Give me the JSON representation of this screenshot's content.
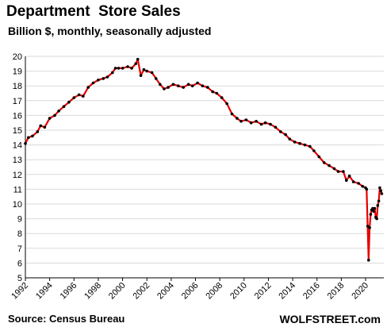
{
  "header": {
    "title": "Department  Store Sales",
    "subtitle": "Billion $, monthly, seasonally adjusted"
  },
  "footer": {
    "source": "Source: Census Bureau",
    "brand": "WOLFSTREET.com"
  },
  "colors": {
    "line": "#e60000",
    "marker": "#000000",
    "grid": "#d9d9d9"
  },
  "chart_data": {
    "type": "line",
    "title": "Department  Store Sales",
    "subtitle": "Billion $, monthly, seasonally adjusted",
    "xlabel": "",
    "ylabel": "",
    "ylim": [
      5,
      20
    ],
    "xlim": [
      1992,
      2021.5
    ],
    "grid": "horizontal",
    "legend": "none",
    "y_ticks": [
      "5",
      "6",
      "7",
      "8",
      "9",
      "10",
      "11",
      "12",
      "13",
      "14",
      "15",
      "16",
      "17",
      "18",
      "19",
      "20"
    ],
    "x_ticks": [
      "1992",
      "1994",
      "1996",
      "1998",
      "2000",
      "2002",
      "2004",
      "2006",
      "2008",
      "2010",
      "2012",
      "2014",
      "2016",
      "2018",
      "2020"
    ],
    "series": [
      {
        "name": "",
        "points": [
          [
            "1992-01",
            14.1
          ],
          [
            "1992-04",
            14.5
          ],
          [
            "1992-08",
            14.6
          ],
          [
            "1993-01",
            14.9
          ],
          [
            "1993-04",
            15.3
          ],
          [
            "1993-08",
            15.2
          ],
          [
            "1994-01",
            15.8
          ],
          [
            "1994-06",
            16.0
          ],
          [
            "1994-10",
            16.3
          ],
          [
            "1995-03",
            16.6
          ],
          [
            "1995-08",
            16.9
          ],
          [
            "1996-01",
            17.2
          ],
          [
            "1996-06",
            17.4
          ],
          [
            "1996-10",
            17.3
          ],
          [
            "1997-03",
            17.9
          ],
          [
            "1997-08",
            18.2
          ],
          [
            "1998-01",
            18.4
          ],
          [
            "1998-06",
            18.5
          ],
          [
            "1998-10",
            18.6
          ],
          [
            "1999-03",
            18.9
          ],
          [
            "1999-06",
            19.2
          ],
          [
            "1999-09",
            19.2
          ],
          [
            "2000-01",
            19.2
          ],
          [
            "2000-06",
            19.3
          ],
          [
            "2000-10",
            19.2
          ],
          [
            "2001-02",
            19.5
          ],
          [
            "2001-04",
            19.8
          ],
          [
            "2001-07",
            18.7
          ],
          [
            "2001-10",
            19.1
          ],
          [
            "2002-01",
            19.0
          ],
          [
            "2002-06",
            18.9
          ],
          [
            "2002-10",
            18.5
          ],
          [
            "2003-02",
            18.1
          ],
          [
            "2003-06",
            17.8
          ],
          [
            "2003-10",
            17.9
          ],
          [
            "2004-03",
            18.1
          ],
          [
            "2004-08",
            18.0
          ],
          [
            "2005-01",
            17.9
          ],
          [
            "2005-06",
            18.1
          ],
          [
            "2005-10",
            18.0
          ],
          [
            "2006-03",
            18.2
          ],
          [
            "2006-08",
            18.0
          ],
          [
            "2007-01",
            17.9
          ],
          [
            "2007-06",
            17.6
          ],
          [
            "2007-10",
            17.5
          ],
          [
            "2008-03",
            17.2
          ],
          [
            "2008-08",
            16.8
          ],
          [
            "2009-01",
            16.1
          ],
          [
            "2009-06",
            15.8
          ],
          [
            "2009-10",
            15.6
          ],
          [
            "2010-03",
            15.7
          ],
          [
            "2010-08",
            15.5
          ],
          [
            "2011-01",
            15.6
          ],
          [
            "2011-06",
            15.4
          ],
          [
            "2011-10",
            15.5
          ],
          [
            "2012-03",
            15.4
          ],
          [
            "2012-08",
            15.2
          ],
          [
            "2013-01",
            14.9
          ],
          [
            "2013-06",
            14.7
          ],
          [
            "2013-10",
            14.4
          ],
          [
            "2014-03",
            14.2
          ],
          [
            "2014-08",
            14.1
          ],
          [
            "2015-01",
            14.0
          ],
          [
            "2015-06",
            13.9
          ],
          [
            "2015-10",
            13.6
          ],
          [
            "2016-03",
            13.2
          ],
          [
            "2016-08",
            12.8
          ],
          [
            "2017-01",
            12.6
          ],
          [
            "2017-06",
            12.4
          ],
          [
            "2017-10",
            12.2
          ],
          [
            "2018-03",
            12.2
          ],
          [
            "2018-06",
            11.6
          ],
          [
            "2018-09",
            11.9
          ],
          [
            "2019-01",
            11.5
          ],
          [
            "2019-06",
            11.4
          ],
          [
            "2019-10",
            11.2
          ],
          [
            "2020-01",
            11.1
          ],
          [
            "2020-02",
            11.0
          ],
          [
            "2020-03",
            8.5
          ],
          [
            "2020-04",
            6.2
          ],
          [
            "2020-05",
            8.4
          ],
          [
            "2020-06",
            9.3
          ],
          [
            "2020-07",
            9.6
          ],
          [
            "2020-08",
            9.7
          ],
          [
            "2020-09",
            9.5
          ],
          [
            "2020-10",
            9.7
          ],
          [
            "2020-11",
            9.1
          ],
          [
            "2020-12",
            9.0
          ],
          [
            "2021-01",
            9.9
          ],
          [
            "2021-02",
            10.2
          ],
          [
            "2021-03",
            11.1
          ],
          [
            "2021-04",
            10.9
          ],
          [
            "2021-05",
            10.7
          ]
        ]
      }
    ]
  }
}
